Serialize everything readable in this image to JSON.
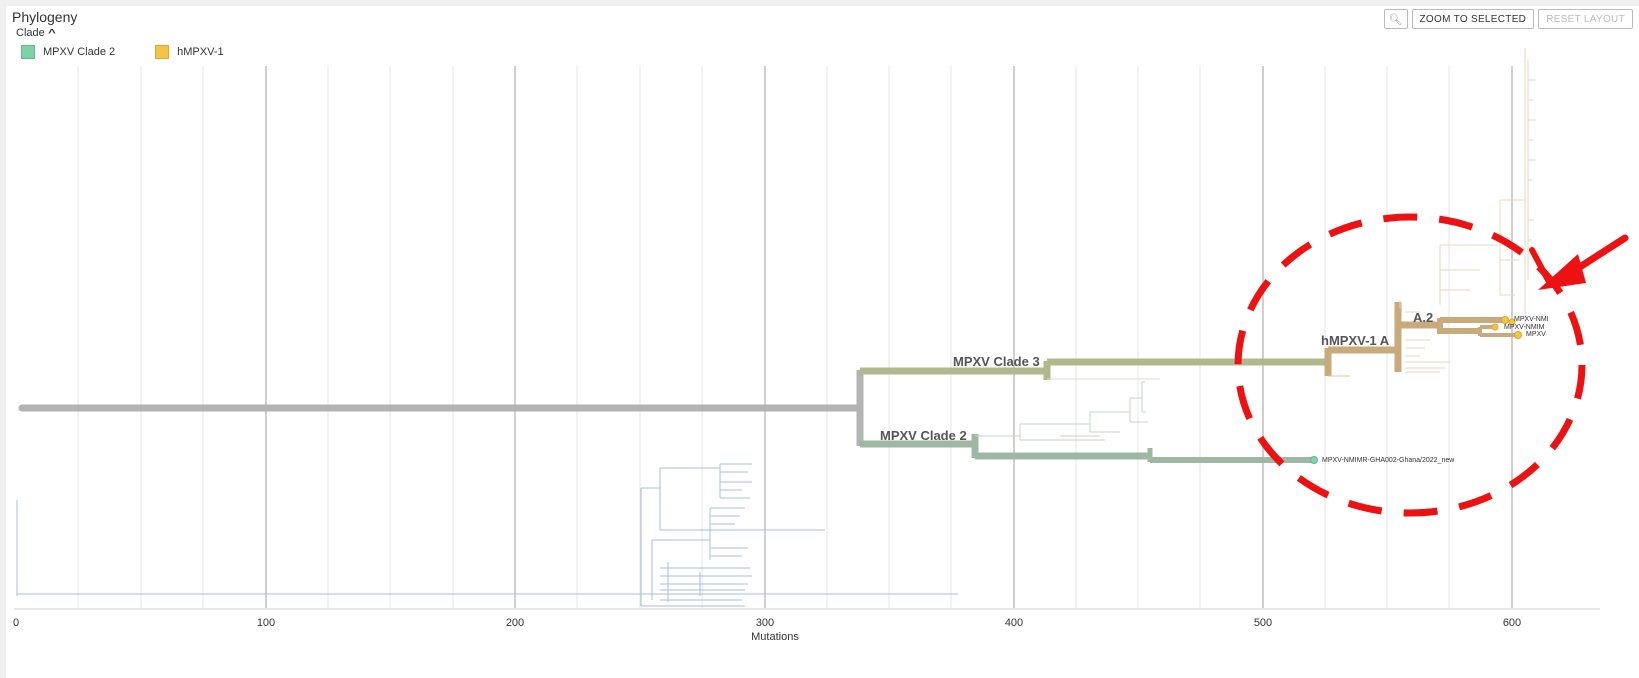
{
  "header": {
    "title": "Phylogeny",
    "clade_toggle": "Clade"
  },
  "legend": [
    {
      "label": "MPXV Clade 2",
      "color": "#7ed2a6"
    },
    {
      "label": "hMPXV-1",
      "color": "#f5c446"
    }
  ],
  "controls": {
    "zoom_icon": "magnifier-icon",
    "zoom_to_selected": "ZOOM TO SELECTED",
    "reset_layout": "RESET LAYOUT"
  },
  "axis": {
    "label": "Mutations",
    "ticks": [
      "0",
      "100",
      "200",
      "300",
      "400",
      "500",
      "600"
    ]
  },
  "tree": {
    "branch_labels": {
      "clade3": "MPXV Clade 3",
      "clade2": "MPXV Clade 2",
      "hmpxv": "hMPXV-1 A",
      "a2": "A.2"
    },
    "tip_labels": {
      "ghana": "MPXV-NMIMR-GHA002-Ghana/2022_new",
      "tip1": "MPXV-NMI",
      "tip2": "MPXV-NMIM",
      "tip3": "MPXV"
    }
  },
  "colors": {
    "root": "#b3b3b3",
    "clade3": "#b0b88c",
    "clade2": "#9fb8a3",
    "hmpxv": "#c8aa7c",
    "annotation": "#ee1111",
    "tip_yellow": "#f5c446",
    "tip_green": "#7ed2a6"
  }
}
